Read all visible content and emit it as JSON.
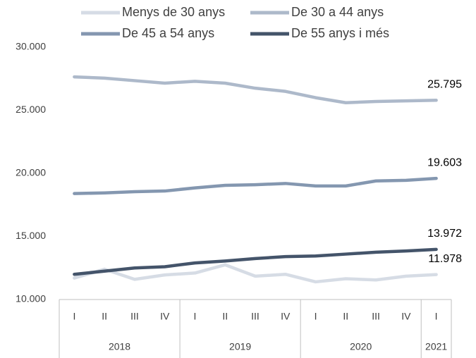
{
  "chart_data": {
    "type": "line",
    "categories": [
      "I",
      "II",
      "III",
      "IV",
      "I",
      "II",
      "III",
      "IV",
      "I",
      "II",
      "III",
      "IV",
      "I"
    ],
    "year_groups": [
      "2018",
      "2019",
      "2020",
      "2021"
    ],
    "series": [
      {
        "name": "Menys de 30 anys",
        "color": "#d6dce5",
        "values": [
          11700,
          12400,
          11600,
          11950,
          12100,
          12750,
          11850,
          12000,
          11400,
          11650,
          11550,
          11850,
          11978
        ],
        "value_labels": [
          null,
          null,
          null,
          null,
          null,
          null,
          null,
          null,
          null,
          null,
          null,
          null,
          "11.978"
        ]
      },
      {
        "name": "De 30 a 44 anys",
        "color": "#adb9ca",
        "values": [
          27650,
          27550,
          27350,
          27150,
          27300,
          27150,
          26750,
          26500,
          26000,
          25600,
          25700,
          25750,
          25795
        ],
        "value_labels": [
          null,
          null,
          null,
          null,
          null,
          null,
          null,
          null,
          null,
          null,
          null,
          null,
          "25.795"
        ]
      },
      {
        "name": "De 45 a 54 anys",
        "color": "#8497b0",
        "values": [
          18400,
          18450,
          18550,
          18600,
          18850,
          19050,
          19100,
          19200,
          19000,
          19000,
          19400,
          19450,
          19603
        ],
        "value_labels": [
          null,
          null,
          null,
          null,
          null,
          null,
          null,
          null,
          null,
          null,
          null,
          null,
          "19.603"
        ]
      },
      {
        "name": "De 55 anys i més",
        "color": "#44546a",
        "values": [
          12000,
          12250,
          12500,
          12600,
          12900,
          13050,
          13250,
          13400,
          13450,
          13600,
          13750,
          13850,
          13972
        ],
        "value_labels": [
          null,
          null,
          null,
          null,
          null,
          null,
          null,
          null,
          null,
          null,
          null,
          null,
          "13.972"
        ]
      }
    ],
    "ylim": [
      10000,
      30000
    ],
    "yticks": [
      {
        "value": 10000,
        "label": "10.000"
      },
      {
        "value": 15000,
        "label": "15.000"
      },
      {
        "value": 20000,
        "label": "20.000"
      },
      {
        "value": 25000,
        "label": "25.000"
      },
      {
        "value": 30000,
        "label": "30.000"
      }
    ],
    "grid": false,
    "legend": "top"
  }
}
